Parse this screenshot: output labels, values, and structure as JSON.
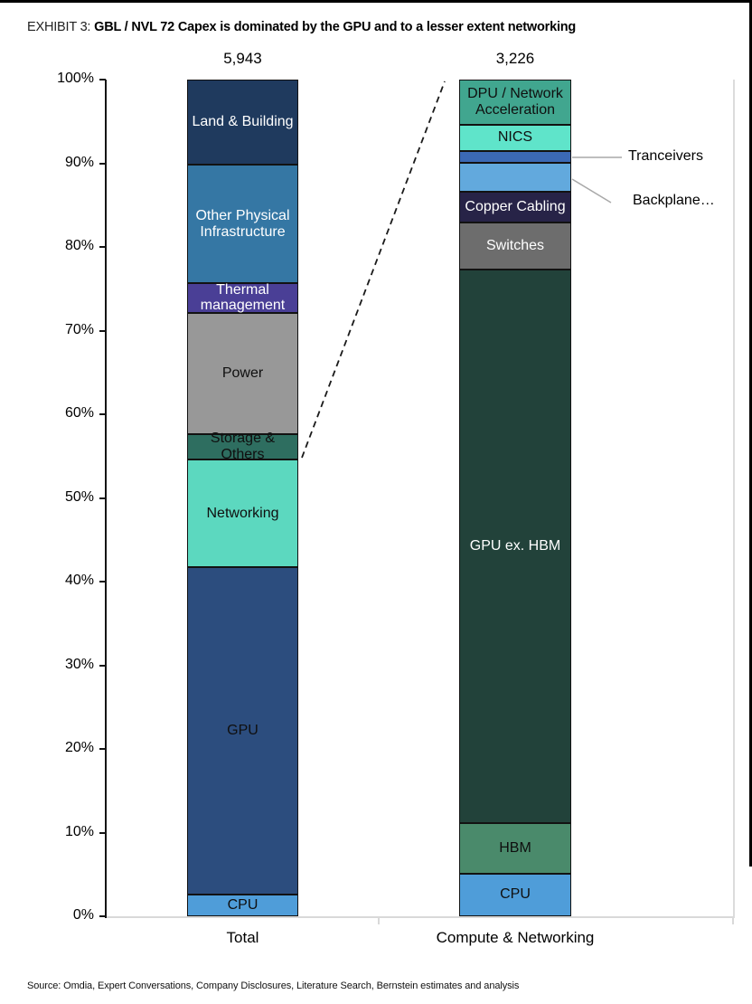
{
  "header": {
    "exhibit_prefix": "EXHIBIT 3:",
    "title": "GBL / NVL 72 Capex is dominated by the GPU and to a lesser extent networking"
  },
  "footer": {
    "source": "Source: Omdia, Expert Conversations, Company Disclosures, Literature Search, Bernstein estimates and analysis"
  },
  "annotations": {
    "tranceivers_label": "Tranceivers",
    "backplane_label": "Backplane…"
  },
  "chart_data": {
    "type": "bar",
    "subtype": "100%-stacked-column",
    "title": "GBL / NVL 72 Capex is dominated by the GPU and to a lesser extent networking",
    "xlabel": "",
    "ylabel": "",
    "ylim": [
      0,
      100
    ],
    "grid": false,
    "legend_position": "none",
    "y_ticks": [
      "100%",
      "90%",
      "80%",
      "70%",
      "60%",
      "50%",
      "40%",
      "30%",
      "20%",
      "10%",
      "0%"
    ],
    "categories": [
      "Total",
      "Compute & Networking"
    ],
    "bars": [
      {
        "category": "Total",
        "total_label": "5,943",
        "segments_top_to_bottom": [
          {
            "label": "Land & Building",
            "value_pct": 10.2,
            "color": "#1f3a5e",
            "text_color": "#ffffff",
            "show_label": true
          },
          {
            "label": "Other Physical Infrastructure",
            "value_pct": 14.1,
            "color": "#3577a4",
            "text_color": "#ffffff",
            "show_label": true
          },
          {
            "label": "Thermal management",
            "value_pct": 3.6,
            "color": "#4a3f96",
            "text_color": "#ffffff",
            "show_label": true
          },
          {
            "label": "Power",
            "value_pct": 14.5,
            "color": "#989898",
            "text_color": "#0f0f0f",
            "show_label": true
          },
          {
            "label": "Storage & Others",
            "value_pct": 3.0,
            "color": "#2e6e60",
            "text_color": "#0f0f0f",
            "show_label": true
          },
          {
            "label": "Networking",
            "value_pct": 12.9,
            "color": "#5cd8bf",
            "text_color": "#0f0f0f",
            "show_label": true
          },
          {
            "label": "GPU",
            "value_pct": 39.1,
            "color": "#2c4d7e",
            "text_color": "#0f0f0f",
            "show_label": true
          },
          {
            "label": "CPU",
            "value_pct": 2.6,
            "color": "#4f9dd9",
            "text_color": "#0f0f0f",
            "show_label": true
          }
        ]
      },
      {
        "category": "Compute & Networking",
        "total_label": "3,226",
        "segments_top_to_bottom": [
          {
            "label": "DPU / Network Acceleration",
            "value_pct": 5.4,
            "color": "#41a68f",
            "text_color": "#0f0f0f",
            "show_label": true
          },
          {
            "label": "NICS",
            "value_pct": 3.1,
            "color": "#5fe4ca",
            "text_color": "#0f0f0f",
            "show_label": true
          },
          {
            "label": "Tranceivers",
            "value_pct": 1.5,
            "color": "#3b69b5",
            "text_color": "#ffffff",
            "show_label": false
          },
          {
            "label": "Backplane…",
            "value_pct": 3.4,
            "color": "#62a9dd",
            "text_color": "#0f0f0f",
            "show_label": false
          },
          {
            "label": "Copper Cabling",
            "value_pct": 3.7,
            "color": "#272347",
            "text_color": "#ffffff",
            "show_label": true
          },
          {
            "label": "Switches",
            "value_pct": 5.6,
            "color": "#6d6d6d",
            "text_color": "#ffffff",
            "show_label": true
          },
          {
            "label": "GPU ex. HBM",
            "value_pct": 66.2,
            "color": "#22423a",
            "text_color": "#ffffff",
            "show_label": true
          },
          {
            "label": "HBM",
            "value_pct": 6.0,
            "color": "#4a8a6b",
            "text_color": "#0f0f0f",
            "show_label": true
          },
          {
            "label": "CPU",
            "value_pct": 5.1,
            "color": "#4f9dd9",
            "text_color": "#0f0f0f",
            "show_label": true
          }
        ]
      }
    ],
    "callout": "Dashed line links top of Networking segment (54%) in Total bar to top of Compute & Networking bar, showing the right bar is a zoom of compute + networking spend"
  }
}
